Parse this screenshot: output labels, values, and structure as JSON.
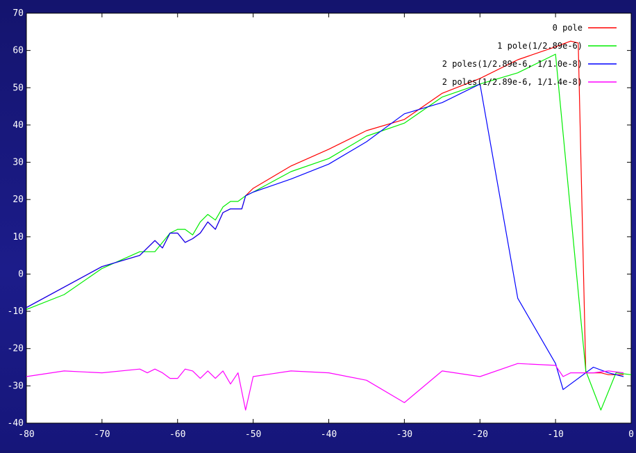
{
  "chart_data": {
    "type": "line",
    "title": "",
    "xlabel": "",
    "ylabel": "",
    "xlim": [
      -80,
      0
    ],
    "ylim": [
      -40,
      70
    ],
    "xticks": [
      -80,
      -70,
      -60,
      -50,
      -40,
      -30,
      -20,
      -10,
      0
    ],
    "yticks": [
      -40,
      -30,
      -20,
      -10,
      0,
      10,
      20,
      30,
      40,
      50,
      60,
      70
    ],
    "grid": false,
    "legend_position": "top-right",
    "series": [
      {
        "name": "0 pole",
        "color": "#ff0000",
        "points": [
          [
            -80,
            -9
          ],
          [
            -70,
            2
          ],
          [
            -65,
            5
          ],
          [
            -63,
            9
          ],
          [
            -62,
            7
          ],
          [
            -61,
            11
          ],
          [
            -60,
            11
          ],
          [
            -59,
            8.5
          ],
          [
            -58,
            9.5
          ],
          [
            -57,
            11
          ],
          [
            -56,
            14
          ],
          [
            -55,
            12
          ],
          [
            -54,
            16.5
          ],
          [
            -53,
            17.5
          ],
          [
            -52,
            17.5
          ],
          [
            -51.5,
            17.5
          ],
          [
            -51,
            21
          ],
          [
            -50,
            23
          ],
          [
            -45,
            29
          ],
          [
            -40,
            33.5
          ],
          [
            -35,
            38.5
          ],
          [
            -30,
            41.5
          ],
          [
            -25,
            48.5
          ],
          [
            -20,
            52.5
          ],
          [
            -15,
            57.5
          ],
          [
            -10,
            61
          ],
          [
            -8,
            62.5
          ],
          [
            -7,
            62
          ],
          [
            -6,
            -26.5
          ],
          [
            -4,
            -26.5
          ],
          [
            -3,
            -27
          ],
          [
            -2,
            -27
          ],
          [
            -1,
            -27
          ]
        ]
      },
      {
        "name": "1 pole(1/2.89e-6)",
        "color": "#00ee00",
        "points": [
          [
            -80,
            -9.5
          ],
          [
            -75,
            -5.5
          ],
          [
            -70,
            1.5
          ],
          [
            -65,
            6
          ],
          [
            -63,
            6
          ],
          [
            -61,
            11
          ],
          [
            -60,
            12
          ],
          [
            -59,
            12
          ],
          [
            -58,
            10.5
          ],
          [
            -57,
            14
          ],
          [
            -56,
            16
          ],
          [
            -55,
            14.5
          ],
          [
            -54,
            18
          ],
          [
            -53,
            19.5
          ],
          [
            -52,
            19.5
          ],
          [
            -51,
            21
          ],
          [
            -50,
            22
          ],
          [
            -45,
            27.5
          ],
          [
            -40,
            31
          ],
          [
            -35,
            37
          ],
          [
            -30,
            40.5
          ],
          [
            -25,
            47.5
          ],
          [
            -20,
            51
          ],
          [
            -15,
            54
          ],
          [
            -10,
            59
          ],
          [
            -6,
            -26
          ],
          [
            -4,
            -36.5
          ],
          [
            -2,
            -26.5
          ],
          [
            0,
            -27
          ]
        ]
      },
      {
        "name": "2 poles(1/2.89e-6, 1/1.0e-8)",
        "color": "#0000ff",
        "points": [
          [
            -80,
            -9
          ],
          [
            -70,
            2
          ],
          [
            -65,
            5
          ],
          [
            -63,
            9
          ],
          [
            -62,
            7
          ],
          [
            -61,
            11
          ],
          [
            -60,
            11
          ],
          [
            -59,
            8.5
          ],
          [
            -58,
            9.5
          ],
          [
            -57,
            11
          ],
          [
            -56,
            14
          ],
          [
            -55,
            12
          ],
          [
            -54,
            16.5
          ],
          [
            -53,
            17.5
          ],
          [
            -52,
            17.5
          ],
          [
            -51.5,
            17.5
          ],
          [
            -51,
            21
          ],
          [
            -50,
            22
          ],
          [
            -45,
            25.5
          ],
          [
            -40,
            29.5
          ],
          [
            -35,
            35.5
          ],
          [
            -30,
            43
          ],
          [
            -25,
            46
          ],
          [
            -20,
            51
          ],
          [
            -15,
            -6.5
          ],
          [
            -10,
            -24
          ],
          [
            -9,
            -31
          ],
          [
            -5,
            -25
          ],
          [
            -3,
            -26.5
          ],
          [
            -1,
            -27.5
          ]
        ]
      },
      {
        "name": "2 poles(1/2.89e-6, 1/1.4e-8)",
        "color": "#ff00ff",
        "points": [
          [
            -80,
            -27.5
          ],
          [
            -75,
            -26
          ],
          [
            -70,
            -26.5
          ],
          [
            -65,
            -25.5
          ],
          [
            -64,
            -26.5
          ],
          [
            -63,
            -25.5
          ],
          [
            -62,
            -26.5
          ],
          [
            -61,
            -28
          ],
          [
            -60,
            -28
          ],
          [
            -59,
            -25.5
          ],
          [
            -58,
            -26
          ],
          [
            -57,
            -28
          ],
          [
            -56,
            -26
          ],
          [
            -55,
            -28
          ],
          [
            -54,
            -26
          ],
          [
            -53,
            -29.5
          ],
          [
            -52,
            -26.5
          ],
          [
            -51,
            -36.5
          ],
          [
            -50,
            -27.5
          ],
          [
            -45,
            -26
          ],
          [
            -40,
            -26.5
          ],
          [
            -35,
            -28.5
          ],
          [
            -30,
            -34.5
          ],
          [
            -25,
            -26
          ],
          [
            -20,
            -27.5
          ],
          [
            -15,
            -24
          ],
          [
            -10,
            -24.5
          ],
          [
            -9,
            -27.5
          ],
          [
            -8,
            -26.5
          ],
          [
            -5,
            -26.5
          ],
          [
            -3,
            -26
          ],
          [
            -1,
            -26.5
          ]
        ]
      }
    ]
  }
}
